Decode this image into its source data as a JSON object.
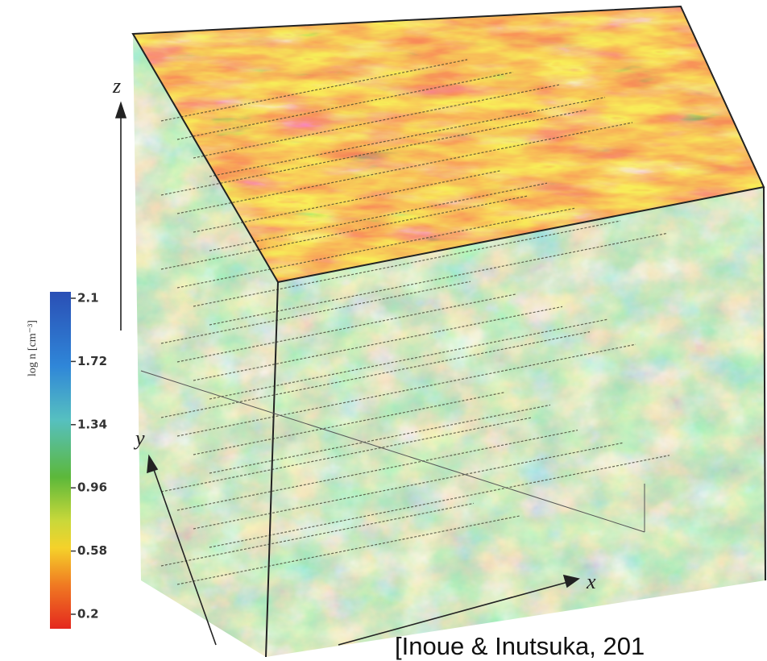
{
  "colorbar": {
    "label": "log n [cm⁻³]",
    "ticks": [
      "2.1",
      "1.72",
      "1.34",
      "0.96",
      "0.58",
      "0.2"
    ]
  },
  "axes": {
    "z": "z",
    "y": "y",
    "x": "x"
  },
  "citation": "[Inoue & Inutsuka, 201"
}
